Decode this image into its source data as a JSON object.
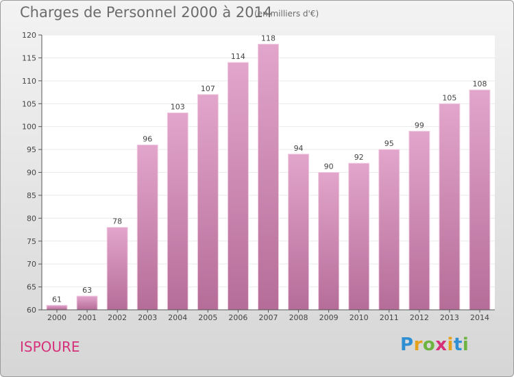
{
  "header": {
    "title": "Charges de Personnel 2000 à 2014",
    "subtitle": "(en milliers d'€)"
  },
  "footer": {
    "town": "ISPOURE",
    "brand": "Proxiti",
    "brand_colors": [
      "#2f8fd3",
      "#e6a11c",
      "#6db33f",
      "#d6307a",
      "#e6a11c",
      "#2f8fd3",
      "#6db33f"
    ]
  },
  "colors": {
    "bar_top": "#e2a5cb",
    "bar_bottom": "#b56d98",
    "bar_stroke": "#f1cde3",
    "axis": "#555555",
    "grid": "#e9e9e9",
    "text": "#444444"
  },
  "chart_data": {
    "type": "bar",
    "categories": [
      "2000",
      "2001",
      "2002",
      "2003",
      "2004",
      "2005",
      "2006",
      "2007",
      "2008",
      "2009",
      "2010",
      "2011",
      "2012",
      "2013",
      "2014"
    ],
    "values": [
      61,
      63,
      78,
      96,
      103,
      107,
      114,
      118,
      94,
      90,
      92,
      95,
      99,
      105,
      108
    ],
    "ylim": [
      60,
      120
    ],
    "yticks": [
      60,
      65,
      70,
      75,
      80,
      85,
      90,
      95,
      100,
      105,
      110,
      115,
      120
    ],
    "grid": true,
    "data_labels": true
  }
}
